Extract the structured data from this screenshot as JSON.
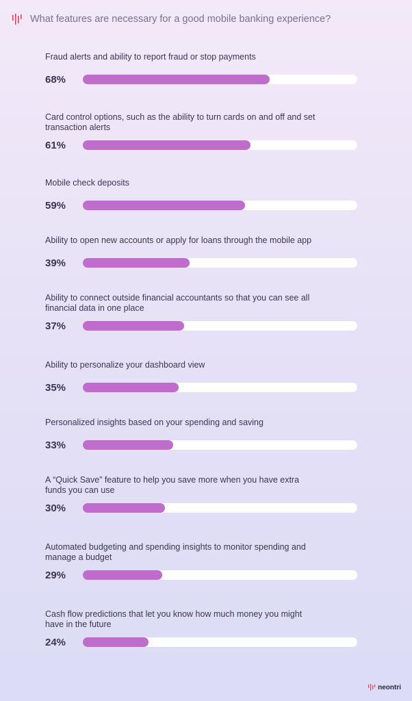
{
  "header": {
    "title": "What features are necessary for a good mobile banking experience?",
    "logo_icon": "waveform-logo-icon",
    "accent": "#e0405a"
  },
  "chart_data": {
    "type": "bar",
    "orientation": "horizontal",
    "title": "What features are necessary for a good mobile banking experience?",
    "categories": [
      "Fraud alerts and ability to report fraud or stop payments",
      "Card control options, such as the ability to turn cards on and off and set transaction alerts",
      "Mobile check deposits",
      "Ability to open new accounts or apply for loans through the mobile app",
      "Ability to connect outside financial accountants so that you can see all financial data in one place",
      "Ability to personalize your dashboard view",
      "Personalized insights based on your spending and saving",
      "A “Quick Save” feature to help you save more when you have extra funds you can use",
      "Automated budgeting and spending insights to monitor spending and manage a budget",
      "Cash flow predictions that let you know how much money you might have in the future"
    ],
    "values": [
      68,
      61,
      59,
      39,
      37,
      35,
      33,
      30,
      29,
      24
    ],
    "value_labels": [
      "68%",
      "61%",
      "59%",
      "39%",
      "37%",
      "35%",
      "33%",
      "30%",
      "29%",
      "24%"
    ],
    "unit": "%",
    "xlim": [
      0,
      100
    ],
    "grid": false,
    "bar_color": "#bf6ccc",
    "track_color": "#ffffff"
  },
  "brand": {
    "name": "neontri",
    "icon": "waveform-logo-icon"
  }
}
